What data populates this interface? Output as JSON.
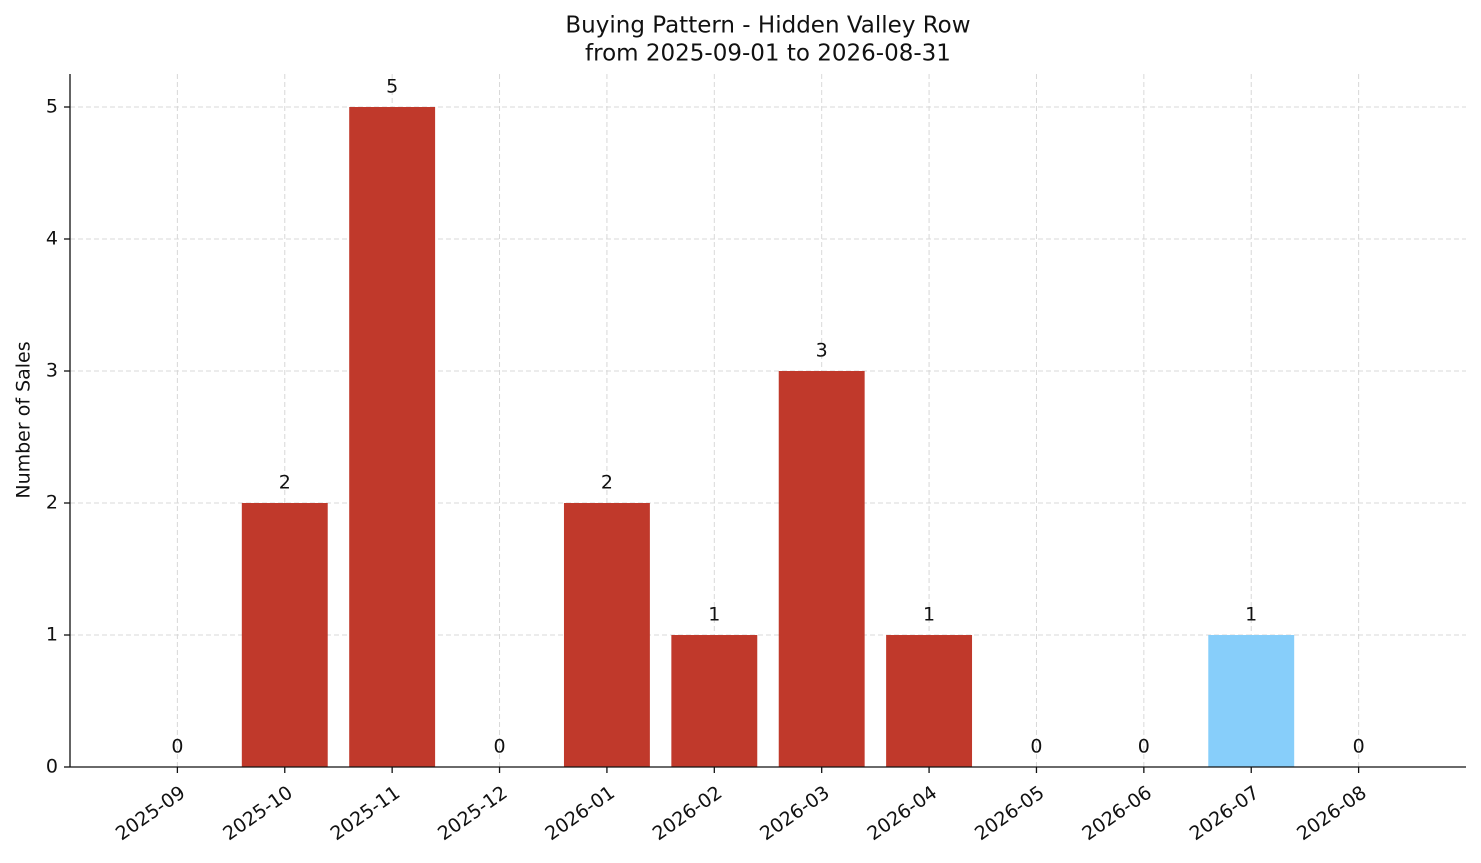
{
  "chart_data": {
    "type": "bar",
    "title": "Buying Pattern - Hidden Valley Row",
    "subtitle": "from 2025-09-01 to 2026-08-31",
    "y_label": "Number of Sales",
    "categories": [
      "2025-09",
      "2025-10",
      "2025-11",
      "2025-12",
      "2026-01",
      "2026-02",
      "2026-03",
      "2026-04",
      "2026-05",
      "2026-06",
      "2026-07",
      "2026-08"
    ],
    "values": [
      0,
      2,
      5,
      0,
      2,
      1,
      3,
      1,
      0,
      0,
      1,
      0
    ],
    "colors": [
      "#c0392b",
      "#c0392b",
      "#c0392b",
      "#c0392b",
      "#c0392b",
      "#c0392b",
      "#c0392b",
      "#c0392b",
      "#c0392b",
      "#c0392b",
      "#87cefa",
      "#c0392b"
    ],
    "ylim": [
      0,
      5.25
    ],
    "yticks": [
      0,
      1,
      2,
      3,
      4,
      5
    ],
    "grid": true
  }
}
